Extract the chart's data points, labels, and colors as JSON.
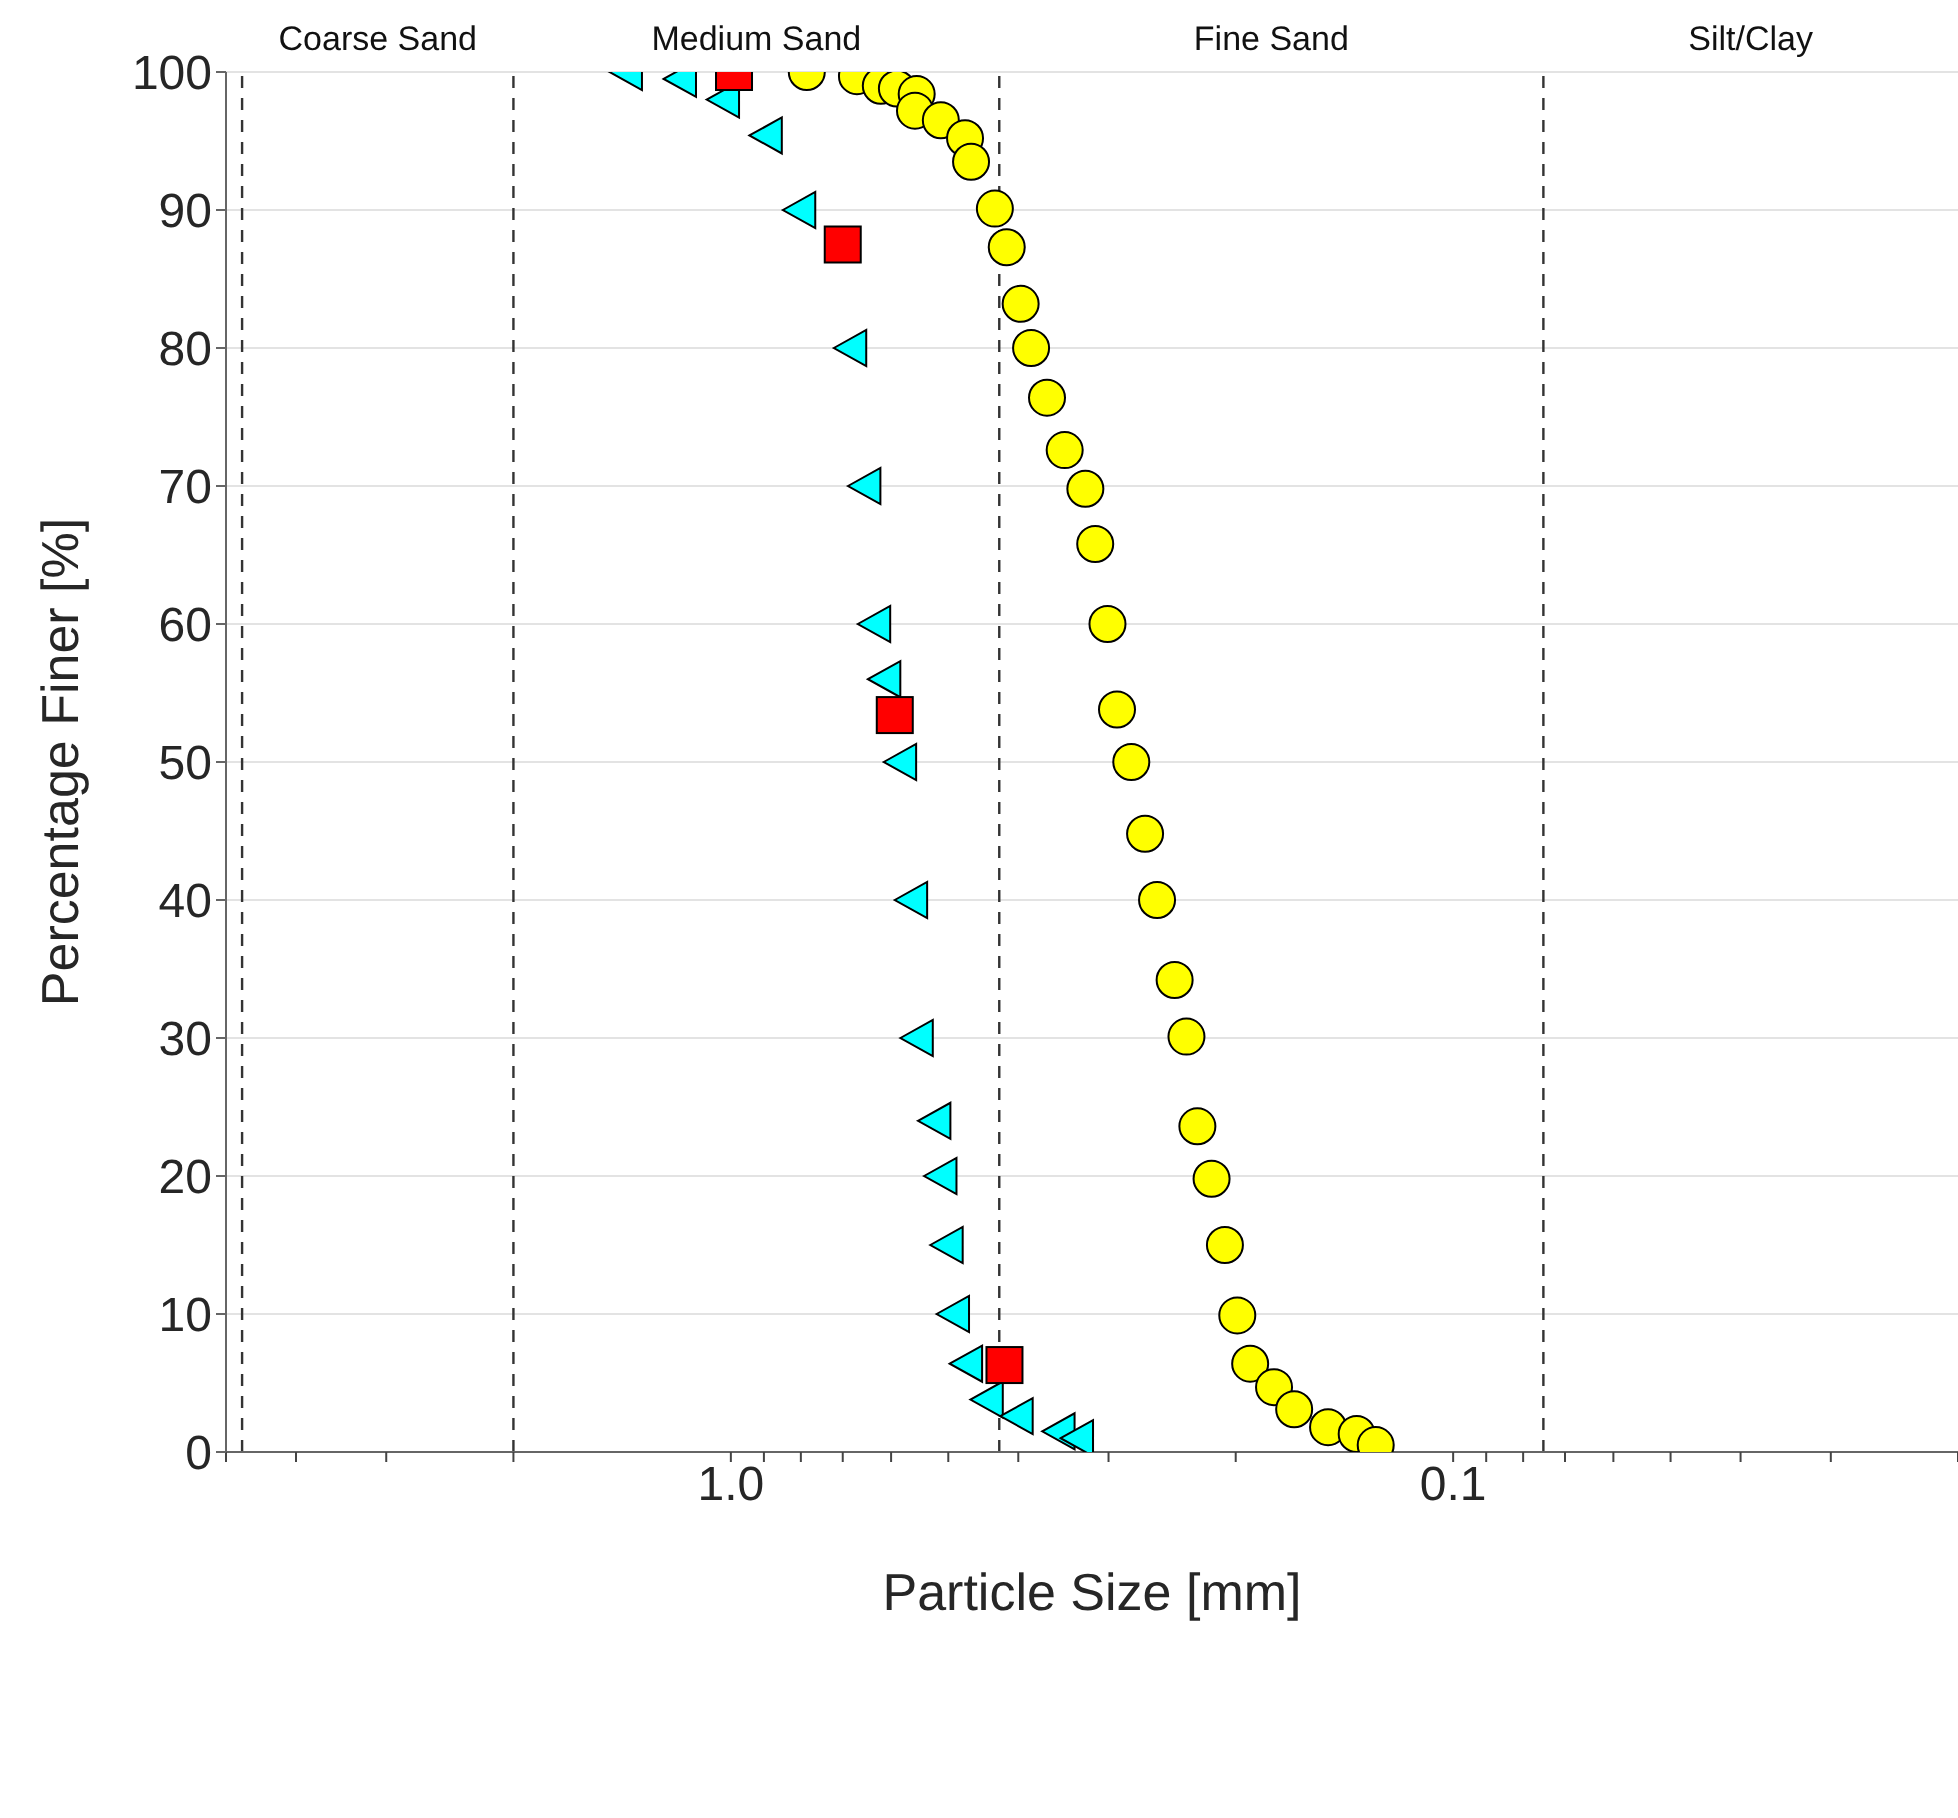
{
  "chart_data": {
    "type": "scatter",
    "xlabel": "Particle Size [mm]",
    "ylabel": "Percentage Finer [%]",
    "log": "x",
    "grid": true,
    "legend": false,
    "xlim": [
      5,
      0.02
    ],
    "xticks": [
      {
        "value": 5,
        "label": null
      },
      {
        "value": 4,
        "label": null
      },
      {
        "value": 3,
        "label": null
      },
      {
        "value": 2,
        "label": null
      },
      {
        "value": 1,
        "label": "1.0"
      },
      {
        "value": 0.9,
        "label": null
      },
      {
        "value": 0.8,
        "label": null
      },
      {
        "value": 0.7,
        "label": null
      },
      {
        "value": 0.6,
        "label": null
      },
      {
        "value": 0.5,
        "label": null
      },
      {
        "value": 0.4,
        "label": null
      },
      {
        "value": 0.3,
        "label": null
      },
      {
        "value": 0.2,
        "label": null
      },
      0.1,
      {
        "value": 0.09,
        "label": null
      },
      {
        "value": 0.08,
        "label": null
      },
      {
        "value": 0.07,
        "label": null
      },
      {
        "value": 0.06,
        "label": null
      },
      {
        "value": 0.05,
        "label": null
      },
      {
        "value": 0.04,
        "label": null
      },
      {
        "value": 0.03,
        "label": null
      },
      {
        "value": 0.02,
        "label": null
      }
    ],
    "ylim": [
      0,
      100
    ],
    "yticks": [
      0,
      10,
      20,
      30,
      40,
      50,
      60,
      70,
      80,
      90,
      100
    ],
    "ref_lines": [
      {
        "axis": "x",
        "value": 4.75,
        "color": "#333333",
        "line_style": "dashed"
      },
      {
        "axis": "x",
        "value": 2,
        "color": "#333333",
        "line_style": "dashed"
      },
      {
        "axis": "x",
        "value": 0.425,
        "color": "#333333",
        "line_style": "dashed"
      },
      {
        "axis": "x",
        "value": 0.075,
        "color": "#333333",
        "line_style": "dashed"
      }
    ],
    "annotations": [
      "Coarse Sand",
      "Medium Sand",
      "Fine Sand",
      "Silt/Clay"
    ],
    "series": [
      {
        "marker": "circle",
        "color": "#ffff00",
        "x": [
          0.785,
          0.669,
          0.62,
          0.589,
          0.553,
          0.556,
          0.512,
          0.474,
          0.465,
          0.431,
          0.415,
          0.397,
          0.384,
          0.365,
          0.345,
          0.323,
          0.313,
          0.301,
          0.292,
          0.279,
          0.267,
          0.257,
          0.243,
          0.234,
          0.226,
          0.216,
          0.207,
          0.199,
          0.191,
          0.177,
          0.166,
          0.149,
          0.136,
          0.128
        ],
        "values": [
          100,
          99.7,
          99,
          98.8,
          98.4,
          97.2,
          96.5,
          95.2,
          93.5,
          90.1,
          87.3,
          83.2,
          80,
          76.4,
          72.6,
          69.8,
          65.8,
          60,
          53.8,
          50,
          44.8,
          40,
          34.2,
          30.1,
          23.6,
          19.8,
          15,
          9.9,
          6.4,
          4.7,
          3.1,
          1.8,
          1.3,
          0.5
        ]
      },
      {
        "marker": "triangle",
        "color": "#00ffff",
        "x": [
          1.39,
          1.17,
          1.02,
          0.89,
          0.8,
          0.68,
          0.65,
          0.63,
          0.61,
          0.58,
          0.56,
          0.55,
          0.52,
          0.51,
          0.5,
          0.49,
          0.47,
          0.44,
          0.4,
          0.35,
          0.33
        ],
        "values": [
          100,
          99.5,
          98,
          95.4,
          90,
          80,
          70,
          60,
          56,
          50,
          40,
          30,
          24,
          20,
          15,
          10,
          6.4,
          3.8,
          2.6,
          1.5,
          1
        ]
      },
      {
        "marker": "square",
        "color": "#ff0000",
        "x": [
          0.99,
          0.7,
          0.593,
          0.418
        ],
        "values": [
          100,
          87.5,
          53.4,
          6.3
        ]
      }
    ]
  }
}
